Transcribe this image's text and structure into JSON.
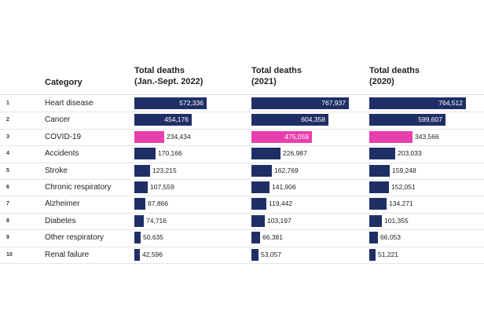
{
  "chart_data": {
    "type": "bar",
    "orientation": "horizontal",
    "category_header": "Category",
    "columns": [
      {
        "title_line1": "Total deaths",
        "title_line2": "(Jan.-Sept. 2022)"
      },
      {
        "title_line1": "Total deaths",
        "title_line2": "(2021)"
      },
      {
        "title_line1": "Total deaths",
        "title_line2": "(2020)"
      }
    ],
    "rows": [
      {
        "rank": "1",
        "category": "Heart disease",
        "values": [
          572336,
          767937,
          764512
        ],
        "labels": [
          "572,336",
          "767,937",
          "764,512"
        ],
        "highlight": false
      },
      {
        "rank": "2",
        "category": "Cancer",
        "values": [
          454176,
          604358,
          599607
        ],
        "labels": [
          "454,176",
          "604,358",
          "599,607"
        ],
        "highlight": false
      },
      {
        "rank": "3",
        "category": "COVID-19",
        "values": [
          234434,
          475059,
          343566
        ],
        "labels": [
          "234,434",
          "475,059",
          "343,566"
        ],
        "highlight": true
      },
      {
        "rank": "4",
        "category": "Accidents",
        "values": [
          170166,
          226987,
          203033
        ],
        "labels": [
          "170,166",
          "226,987",
          "203,033"
        ],
        "highlight": false
      },
      {
        "rank": "5",
        "category": "Stroke",
        "values": [
          123215,
          162769,
          159248
        ],
        "labels": [
          "123,215",
          "162,769",
          "159,248"
        ],
        "highlight": false
      },
      {
        "rank": "6",
        "category": "Chronic respiratory",
        "values": [
          107559,
          141906,
          152051
        ],
        "labels": [
          "107,559",
          "141,906",
          "152,051"
        ],
        "highlight": false
      },
      {
        "rank": "7",
        "category": "Alzheimer",
        "values": [
          87866,
          119442,
          134271
        ],
        "labels": [
          "87,866",
          "119,442",
          "134,271"
        ],
        "highlight": false
      },
      {
        "rank": "8",
        "category": "Diabetes",
        "values": [
          74716,
          103197,
          101355
        ],
        "labels": [
          "74,716",
          "103,197",
          "101,355"
        ],
        "highlight": false
      },
      {
        "rank": "9",
        "category": "Other respiratory",
        "values": [
          50635,
          66381,
          66053
        ],
        "labels": [
          "50,635",
          "66,381",
          "66,053"
        ],
        "highlight": false
      },
      {
        "rank": "10",
        "category": "Renal failure",
        "values": [
          42596,
          53057,
          51221
        ],
        "labels": [
          "42,596",
          "53,057",
          "51,221"
        ],
        "highlight": false
      }
    ],
    "colors": {
      "bar": "#1f2f66",
      "highlight": "#e83fae"
    },
    "xlim": [
      0,
      800000
    ],
    "grid": false,
    "legend": "none"
  }
}
